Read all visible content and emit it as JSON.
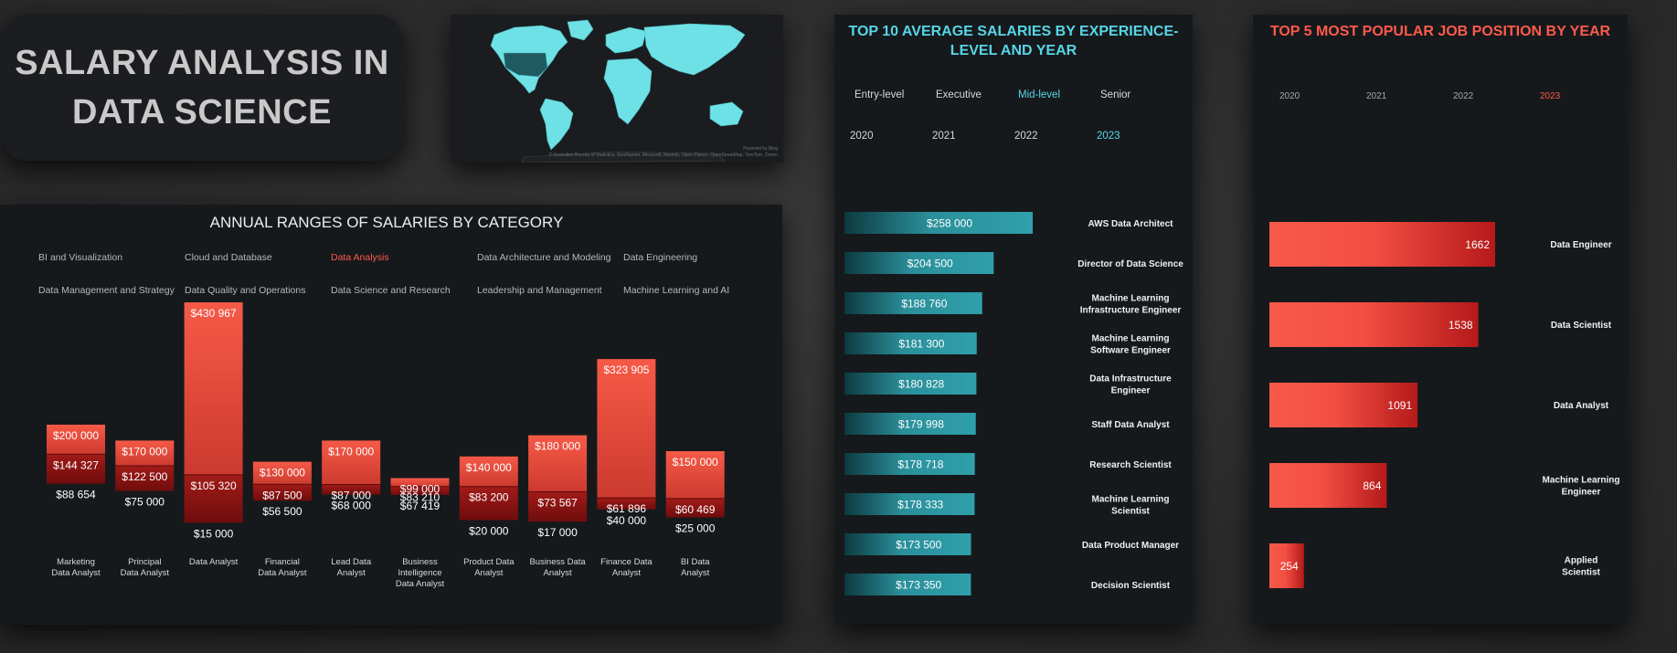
{
  "title_card": {
    "line1": "SALARY ANALYSIS IN",
    "line2": "DATA SCIENCE"
  },
  "map": {
    "attribution_top": "Powered by Bing",
    "attribution": "© Australian Bureau of Statistics, GeoNames, Microsoft, Navinfo, Open Places, OpenStreetMap, TomTom, Zenrin",
    "land_color": "#6de1e6",
    "highlight_color": "#1f5a60"
  },
  "range_chart": {
    "categories": [
      "BI and Visualization",
      "Cloud and Database",
      "Data Analysis",
      "Data Architecture and Modeling",
      "Data Engineering",
      "Data Management and Strategy",
      "Data Quality and Operations",
      "Data Science and Research",
      "Leadership and Management",
      "Machine Learning and AI"
    ],
    "selected_category": "Data Analysis"
  },
  "chart_data": [
    {
      "type": "bar",
      "title": "ANNUAL RANGES OF SALARIES BY CATEGORY",
      "categories": [
        "Marketing Data Analyst",
        "Principal Data Analyst",
        "Data Analyst",
        "Financial Data Analyst",
        "Lead Data Analyst",
        "Business Intelligence Data Analyst",
        "Product Data Analyst",
        "Business Data Analyst",
        "Finance Data Analyst",
        "BI Data Analyst"
      ],
      "series": [
        {
          "name": "min",
          "values": [
            88654,
            75000,
            15000,
            56500,
            68000,
            67419,
            20000,
            17000,
            40000,
            25000
          ],
          "labels": [
            "$88 654",
            "$75 000",
            "$15 000",
            "$56 500",
            "$68 000",
            "$67 419",
            "$20 000",
            "$17 000",
            "$40 000",
            "$25 000"
          ]
        },
        {
          "name": "avg",
          "values": [
            144327,
            122500,
            105320,
            87500,
            87000,
            83210,
            83200,
            73567,
            61896,
            60469
          ],
          "labels": [
            "$144 327",
            "$122 500",
            "$105 320",
            "$87 500",
            "$87 000",
            "$83 210",
            "$83 200",
            "$73 567",
            "$61 896",
            "$60 469"
          ]
        },
        {
          "name": "max",
          "values": [
            200000,
            170000,
            430967,
            130000,
            170000,
            99000,
            140000,
            180000,
            323905,
            150000
          ],
          "labels": [
            "$200 000",
            "$170 000",
            "$430 967",
            "$130 000",
            "$170 000",
            "$99 000",
            "$140 000",
            "$180 000",
            "$323 905",
            "$150 000"
          ]
        }
      ],
      "colors": {
        "upper": "#f25c4b",
        "lower": "#8e1414"
      }
    },
    {
      "type": "bar",
      "title": "TOP 10 AVERAGE SALARIES BY EXPERIENCE-LEVEL AND YEAR",
      "filters": {
        "levels": [
          "Entry-level",
          "Executive",
          "Mid-level",
          "Senior"
        ],
        "selected_level": "Mid-level",
        "years": [
          "2020",
          "2021",
          "2022",
          "2023"
        ],
        "selected_year": "2023"
      },
      "categories": [
        "AWS Data Architect",
        "Director of Data Science",
        "Machine Learning Infrastructure Engineer",
        "Machine Learning Software Engineer",
        "Data Infrastructure Engineer",
        "Staff Data Analyst",
        "Research Scientist",
        "Machine Learning Scientist",
        "Data Product Manager",
        "Decision Scientist"
      ],
      "values": [
        258000,
        204500,
        188760,
        181300,
        180828,
        179998,
        178718,
        178333,
        173500,
        173350
      ],
      "labels": [
        "$258 000",
        "$204 500",
        "$188 760",
        "$181 300",
        "$180 828",
        "$179 998",
        "$178 718",
        "$178 333",
        "$173 500",
        "$173 350"
      ],
      "color": "#2d9aa6"
    },
    {
      "type": "bar",
      "title": "TOP 5 MOST POPULAR JOB POSITION BY YEAR",
      "filters": {
        "years": [
          "2020",
          "2021",
          "2022",
          "2023"
        ],
        "selected_year": "2023"
      },
      "categories": [
        "Data Engineer",
        "Data Scientist",
        "Data Analyst",
        "Machine Learning Engineer",
        "Applied Scientist"
      ],
      "values": [
        1662,
        1538,
        1091,
        864,
        254
      ],
      "color": "#f25c4b"
    }
  ]
}
